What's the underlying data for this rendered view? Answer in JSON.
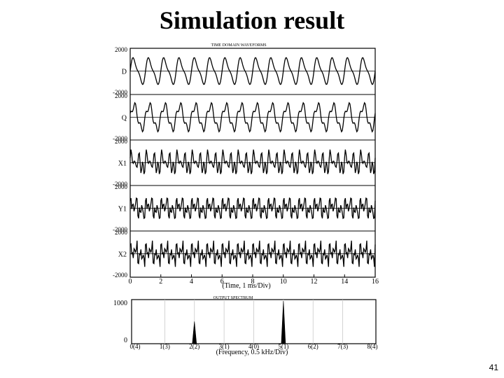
{
  "slide": {
    "title": "Simulation result",
    "page_number": "41"
  },
  "chart_data": [
    {
      "type": "line",
      "title": "TIME DOMAIN WAVEFORMS",
      "xlabel": "(Time, 1 ms/Div)",
      "x_ticks": [
        "0",
        "2",
        "4",
        "6",
        "8",
        "10",
        "12",
        "14",
        "16"
      ],
      "xlim": [
        0,
        16
      ],
      "grid": false,
      "samples_per_ms": 20,
      "panels": [
        {
          "name": "D",
          "ylim": [
            -2000,
            2000
          ],
          "y_ticks": [
            "2000",
            "-2000"
          ],
          "description": "fundamental 1 kHz with 2nd harmonic",
          "harmonics": [
            {
              "k": 1,
              "a": 1100,
              "phase": 0
            },
            {
              "k": 2,
              "a": 350,
              "phase": 0
            }
          ]
        },
        {
          "name": "Q",
          "ylim": [
            -2000,
            2000
          ],
          "y_ticks": [
            "2000",
            "-2000"
          ],
          "harmonics": [
            {
              "k": 1,
              "a": 1100,
              "phase": 0
            },
            {
              "k": 3,
              "a": 380,
              "phase": 1.57
            }
          ]
        },
        {
          "name": "X1",
          "ylim": [
            -2000,
            2000
          ],
          "y_ticks": [
            "2000",
            "-2000"
          ],
          "harmonics": [
            {
              "k": 1,
              "a": 250,
              "phase": 0
            },
            {
              "k": 2,
              "a": 500,
              "phase": 0.5
            },
            {
              "k": 4,
              "a": 600,
              "phase": 0
            },
            {
              "k": 5,
              "a": 250,
              "phase": 1
            }
          ]
        },
        {
          "name": "Y1",
          "ylim": [
            -2000,
            2000
          ],
          "y_ticks": [
            "2000",
            "-2000"
          ],
          "harmonics": [
            {
              "k": 1,
              "a": 350,
              "phase": 0
            },
            {
              "k": 3,
              "a": 550,
              "phase": 0.3
            },
            {
              "k": 5,
              "a": 450,
              "phase": 1.2
            },
            {
              "k": 7,
              "a": 300,
              "phase": 0.4
            }
          ]
        },
        {
          "name": "X2",
          "ylim": [
            -2000,
            2000
          ],
          "y_ticks": [
            "2000",
            "-2000"
          ],
          "harmonics": [
            {
              "k": 1,
              "a": 300,
              "phase": 0
            },
            {
              "k": 3,
              "a": 450,
              "phase": 0.7
            },
            {
              "k": 5,
              "a": 500,
              "phase": 0.2
            },
            {
              "k": 7,
              "a": 400,
              "phase": 1.1
            },
            {
              "k": 9,
              "a": 250,
              "phase": 0.5
            }
          ]
        }
      ]
    },
    {
      "type": "bar",
      "title": "OUTPUT SPECTRUM",
      "xlabel": "(Frequency, 0.5 kHz/Div)",
      "categories": [
        "0(4)",
        "1(3)",
        "2(2)",
        "3(1)",
        "4(0)",
        "5(1)",
        "6(2)",
        "7(3)",
        "8(4)"
      ],
      "ylim": [
        0,
        1000
      ],
      "y_ticks": [
        "1000",
        "0"
      ],
      "values": [
        0,
        0,
        520,
        0,
        0,
        1000,
        0,
        0,
        0
      ],
      "grid": true
    }
  ]
}
